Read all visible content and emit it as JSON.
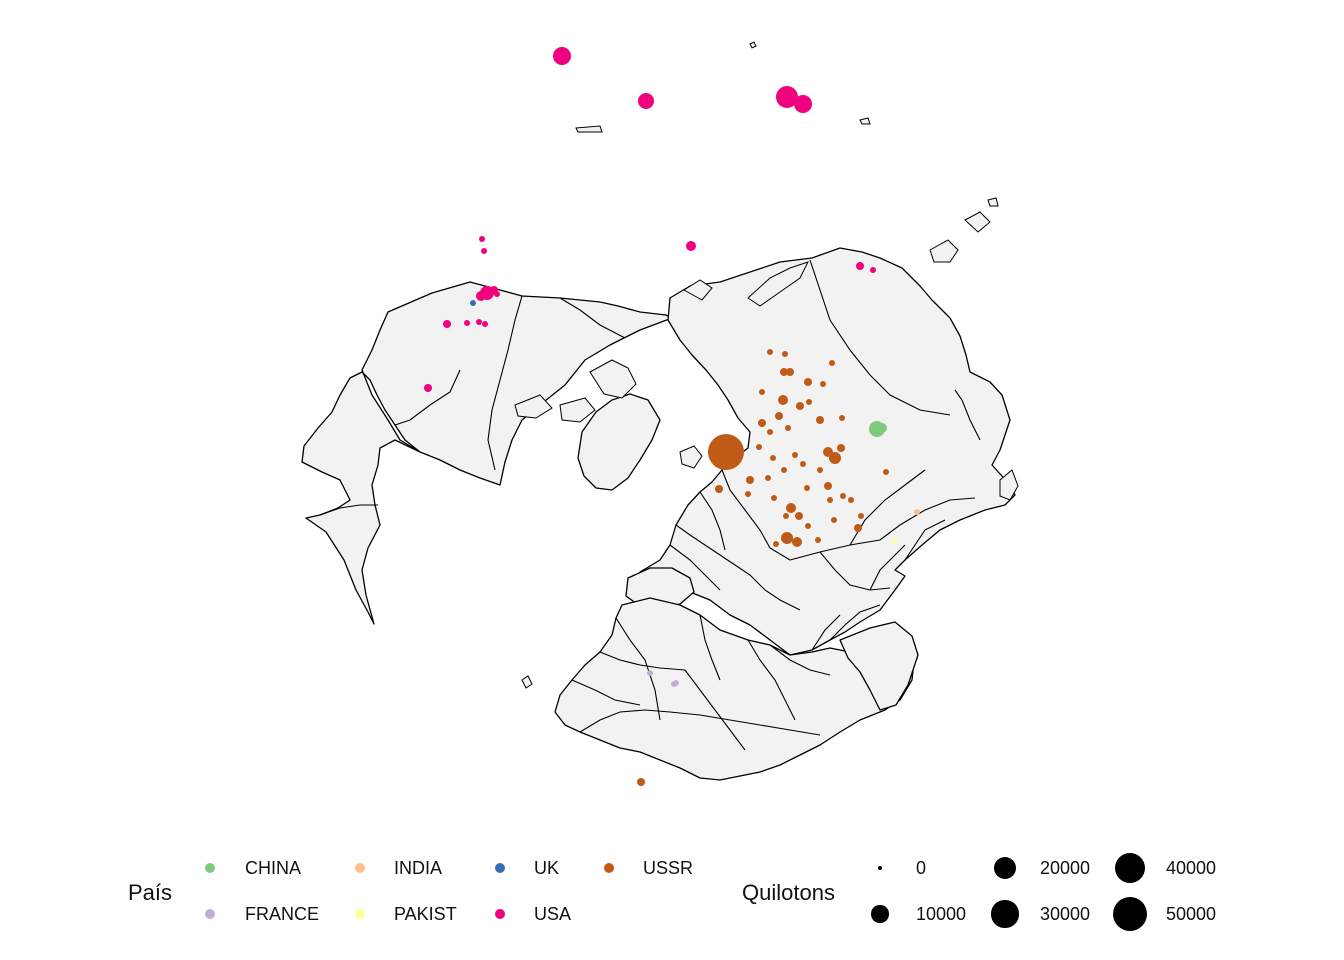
{
  "legend_country": {
    "title": "País",
    "items": [
      {
        "label": "CHINA",
        "color": "#7fc97f"
      },
      {
        "label": "FRANCE",
        "color": "#beaed4"
      },
      {
        "label": "INDIA",
        "color": "#fdc086"
      },
      {
        "label": "PAKIST",
        "color": "#ffff99"
      },
      {
        "label": "UK",
        "color": "#386cb0"
      },
      {
        "label": "USA",
        "color": "#f0027f"
      },
      {
        "label": "USSR",
        "color": "#bf5b17"
      }
    ]
  },
  "legend_size": {
    "title": "Quilotons",
    "items": [
      {
        "label": "0",
        "value": 0
      },
      {
        "label": "10000",
        "value": 10000
      },
      {
        "label": "20000",
        "value": 20000
      },
      {
        "label": "30000",
        "value": 30000
      },
      {
        "label": "40000",
        "value": 40000
      },
      {
        "label": "50000",
        "value": 50000
      }
    ]
  },
  "map": {
    "projection": "north polar azimuthal",
    "land_color": "#f2f2f2",
    "border_color": "#000000"
  }
}
